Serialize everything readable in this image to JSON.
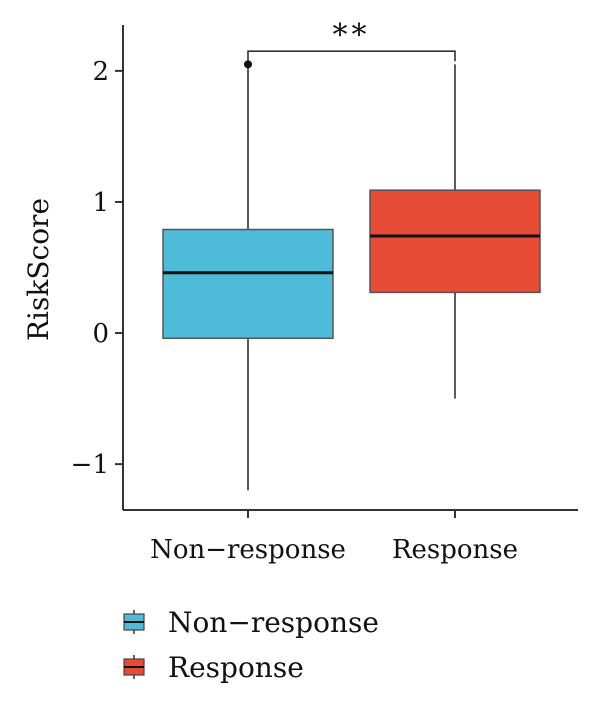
{
  "chart_data": {
    "type": "boxplot",
    "title": "",
    "xlabel": "",
    "ylabel": "RiskScore",
    "ylim": [
      -1.35,
      2.35
    ],
    "yticks": [
      -1,
      0,
      1,
      2
    ],
    "ytick_labels": [
      "−1",
      "0",
      "1",
      "2"
    ],
    "categories": [
      "Non−response",
      "Response"
    ],
    "series": [
      {
        "name": "Non−response",
        "color": "#4ebbd8",
        "whisker_low": -1.2,
        "q1": -0.04,
        "median": 0.46,
        "q3": 0.79,
        "whisker_high": 2.05,
        "outliers": [
          2.05
        ]
      },
      {
        "name": "Response",
        "color": "#e64b35",
        "whisker_low": -0.5,
        "q1": 0.31,
        "median": 0.74,
        "q3": 1.09,
        "whisker_high": 2.05,
        "outliers": []
      }
    ],
    "significance": {
      "label": "**",
      "between": [
        0,
        1
      ],
      "y": 2.15
    },
    "legend": {
      "position": "bottom-left",
      "entries": [
        "Non−response",
        "Response"
      ]
    }
  }
}
